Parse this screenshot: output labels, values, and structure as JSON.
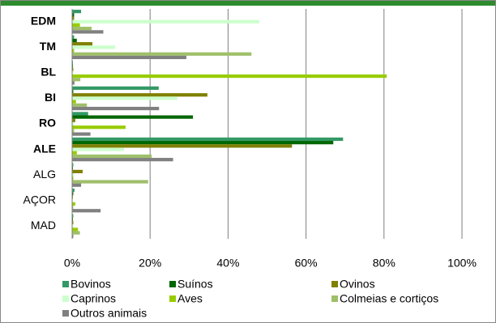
{
  "chart_data": {
    "type": "hbar",
    "categories": [
      "EDM",
      "TM",
      "BL",
      "BI",
      "RO",
      "ALE",
      "ALG",
      "AÇOR",
      "MAD"
    ],
    "series": [
      {
        "name": "Bovinos",
        "color": "#339966",
        "values": [
          2.3,
          0.5,
          0.2,
          22.2,
          4.1,
          69.5,
          0.3,
          0.6,
          0.3
        ]
      },
      {
        "name": "Suínos",
        "color": "#006600",
        "values": [
          0.5,
          1.2,
          0.2,
          0.3,
          31,
          67,
          0.2,
          0.3,
          0.2
        ]
      },
      {
        "name": "Ovinos",
        "color": "#808000",
        "values": [
          0.5,
          5.2,
          0.3,
          34.7,
          0.8,
          56.4,
          2.7,
          0.2,
          0.3
        ]
      },
      {
        "name": "Caprinos",
        "color": "#CCFFCC",
        "values": [
          48,
          11,
          0.3,
          27,
          0.5,
          13.3,
          0.5,
          0.2,
          0.3
        ]
      },
      {
        "name": "Aves",
        "color": "#99CC00",
        "values": [
          2,
          0.5,
          80.7,
          1,
          13.7,
          1.2,
          0.3,
          0.8,
          1.5
        ]
      },
      {
        "name": "Colmeias e cortiços",
        "color": "#9FBF6A",
        "values": [
          5,
          46,
          2.1,
          3.8,
          0.5,
          20.4,
          19.5,
          0.3,
          2
        ]
      },
      {
        "name": "Outros animais",
        "color": "#808080",
        "values": [
          8,
          29.3,
          0.6,
          22.3,
          4.7,
          25.9,
          2.3,
          7.3,
          0.3
        ]
      }
    ],
    "xlim": [
      0,
      100
    ],
    "xticks": [
      {
        "value": 0,
        "label": "0%"
      },
      {
        "value": 20,
        "label": "20%"
      },
      {
        "value": 40,
        "label": "40%"
      },
      {
        "value": 60,
        "label": "60%"
      },
      {
        "value": 80,
        "label": "80%"
      },
      {
        "value": 100,
        "label": "100%"
      }
    ],
    "grid": true
  }
}
